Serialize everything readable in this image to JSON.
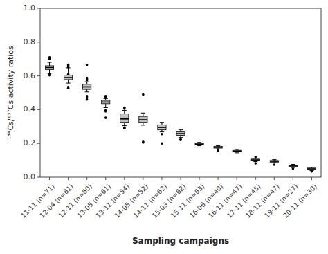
{
  "chart_data": {
    "type": "box",
    "xlabel": "Sampling campaigns",
    "ylabel": "¹³⁴Cs/¹³⁷Cs activity ratios",
    "categories": [
      "11-11 (n=71)",
      "12-04 (n=61)",
      "12-11 (n=60)",
      "13-05 (n=61)",
      "13-11 (n=54)",
      "14-05 (n=52)",
      "14-11 (n=62)",
      "15-03 (n=62)",
      "15-11 (n=63)",
      "16-06 (n=40)",
      "16-11 (n=47)",
      "17-11 (n=45)",
      "18-11 (n=47)",
      "19-11 (n=27)",
      "20-11 (n=30)"
    ],
    "boxes": [
      {
        "whislo": 0.615,
        "q1": 0.638,
        "med": 0.65,
        "q3": 0.66,
        "whishi": 0.68,
        "fliers": [
          0.604,
          0.608,
          0.7,
          0.71
        ]
      },
      {
        "whislo": 0.557,
        "q1": 0.578,
        "med": 0.59,
        "q3": 0.604,
        "whishi": 0.648,
        "fliers": [
          0.528,
          0.534,
          0.61,
          0.652,
          0.66,
          0.666
        ]
      },
      {
        "whislo": 0.505,
        "q1": 0.52,
        "med": 0.535,
        "q3": 0.55,
        "whishi": 0.565,
        "fliers": [
          0.46,
          0.47,
          0.48,
          0.575,
          0.582,
          0.588,
          0.665
        ]
      },
      {
        "whislo": 0.412,
        "q1": 0.435,
        "med": 0.445,
        "q3": 0.455,
        "whishi": 0.465,
        "fliers": [
          0.352,
          0.39,
          0.396,
          0.476,
          0.48
        ]
      },
      {
        "whislo": 0.305,
        "q1": 0.325,
        "med": 0.345,
        "q3": 0.375,
        "whishi": 0.395,
        "fliers": [
          0.29,
          0.294,
          0.406,
          0.412
        ]
      },
      {
        "whislo": 0.308,
        "q1": 0.325,
        "med": 0.34,
        "q3": 0.36,
        "whishi": 0.38,
        "fliers": [
          0.205,
          0.21,
          0.49
        ]
      },
      {
        "whislo": 0.268,
        "q1": 0.28,
        "med": 0.295,
        "q3": 0.31,
        "whishi": 0.325,
        "fliers": [
          0.2,
          0.255
        ]
      },
      {
        "whislo": 0.235,
        "q1": 0.248,
        "med": 0.258,
        "q3": 0.268,
        "whishi": 0.28,
        "fliers": [
          0.22,
          0.224
        ]
      },
      {
        "whislo": 0.186,
        "q1": 0.191,
        "med": 0.196,
        "q3": 0.201,
        "whishi": 0.206,
        "fliers": []
      },
      {
        "whislo": 0.167,
        "q1": 0.172,
        "med": 0.177,
        "q3": 0.183,
        "whishi": 0.187,
        "fliers": [
          0.155,
          0.16
        ]
      },
      {
        "whislo": 0.144,
        "q1": 0.149,
        "med": 0.154,
        "q3": 0.159,
        "whishi": 0.164,
        "fliers": []
      },
      {
        "whislo": 0.092,
        "q1": 0.097,
        "med": 0.102,
        "q3": 0.107,
        "whishi": 0.112,
        "fliers": [
          0.082,
          0.12
        ]
      },
      {
        "whislo": 0.084,
        "q1": 0.089,
        "med": 0.094,
        "q3": 0.099,
        "whishi": 0.104,
        "fliers": [
          0.074
        ]
      },
      {
        "whislo": 0.057,
        "q1": 0.061,
        "med": 0.066,
        "q3": 0.071,
        "whishi": 0.076,
        "fliers": [
          0.05
        ]
      },
      {
        "whislo": 0.039,
        "q1": 0.043,
        "med": 0.049,
        "q3": 0.054,
        "whishi": 0.059,
        "fliers": [
          0.034
        ]
      }
    ],
    "color": "#c0c0c0",
    "ylim": [
      0.0,
      1.0
    ],
    "yticks": [
      {
        "value": 0.0,
        "label": "0.0"
      },
      0.2,
      0.4,
      0.6,
      0.8,
      {
        "value": 1.0,
        "label": "1.0"
      }
    ]
  }
}
